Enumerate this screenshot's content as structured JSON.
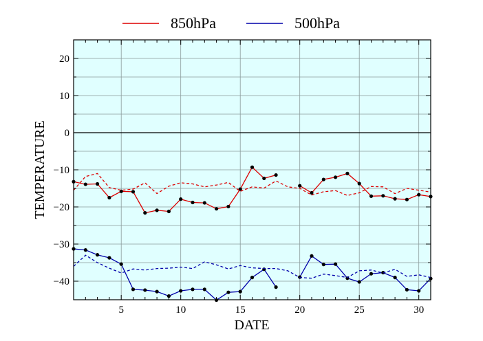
{
  "chart_data": {
    "type": "line",
    "title": "",
    "xlabel": "DATE",
    "ylabel": "TEMPERATURE",
    "xlim": [
      1,
      31
    ],
    "ylim": [
      -45,
      25
    ],
    "x_ticks": [
      5,
      10,
      15,
      20,
      25,
      30
    ],
    "y_ticks": [
      -40,
      -30,
      -20,
      -10,
      0,
      10,
      20
    ],
    "x_minor_step": 1,
    "y_minor_step": 5,
    "grid": true,
    "background_color": "#e0ffff",
    "zero_line": true,
    "legend": {
      "placement": "top",
      "entries": [
        {
          "label": "850hPa",
          "color": "#dd0000"
        },
        {
          "label": "500hPa",
          "color": "#0000aa"
        }
      ]
    },
    "x": [
      1,
      2,
      3,
      4,
      5,
      6,
      7,
      8,
      9,
      10,
      11,
      12,
      13,
      14,
      15,
      16,
      17,
      18,
      19,
      20,
      21,
      22,
      23,
      24,
      25,
      26,
      27,
      28,
      29,
      30,
      31
    ],
    "series": [
      {
        "color": "#dd0000",
        "style": "solid",
        "markers": true,
        "values": [
          -13.2,
          -13.9,
          -13.8,
          -17.5,
          -15.8,
          -15.9,
          -21.6,
          -20.9,
          -21.2,
          -17.9,
          -18.8,
          -18.9,
          -20.5,
          -19.9,
          -15.2,
          -9.3,
          -12.3,
          -11.4,
          null,
          -14.3,
          -16.2,
          -12.6,
          -12.0,
          -11.0,
          -13.7,
          -17.1,
          -17.0,
          -17.8,
          -18.0,
          -16.7,
          -17.2
        ]
      },
      {
        "color": "#dd0000",
        "style": "dashed",
        "markers": false,
        "values": [
          -15.5,
          -11.8,
          -11.0,
          -14.8,
          -15.5,
          -15.2,
          -13.5,
          -16.4,
          -14.4,
          -13.5,
          -13.8,
          -14.6,
          -14.1,
          -13.4,
          -15.8,
          -14.6,
          -14.9,
          -13.0,
          -14.6,
          -15.0,
          -16.8,
          -15.9,
          -15.6,
          -16.9,
          -16.2,
          -14.5,
          -14.6,
          -16.4,
          -15.0,
          -15.5,
          -16.0
        ]
      },
      {
        "color": "#0000aa",
        "style": "solid",
        "markers": true,
        "values": [
          -31.3,
          -31.6,
          -32.9,
          -33.7,
          -35.4,
          -42.2,
          -42.4,
          -42.8,
          -44.0,
          -42.6,
          -42.2,
          -42.2,
          -45.1,
          -43.0,
          -42.8,
          -39.0,
          -36.8,
          -41.6,
          null,
          -38.9,
          -33.2,
          -35.5,
          -35.4,
          -39.2,
          -40.2,
          -38.0,
          -37.7,
          -39.0,
          -42.3,
          -42.6,
          -39.3
        ]
      },
      {
        "color": "#0000aa",
        "style": "dashed",
        "markers": false,
        "values": [
          -36.0,
          -33.0,
          -35.0,
          -36.5,
          -37.8,
          -36.7,
          -37.0,
          -36.6,
          -36.5,
          -36.2,
          -36.6,
          -34.8,
          -35.6,
          -36.7,
          -35.8,
          -36.4,
          -36.6,
          -36.6,
          -37.2,
          -39.0,
          -39.2,
          -38.1,
          -38.5,
          -39.0,
          -37.2,
          -37.0,
          -37.8,
          -36.8,
          -38.7,
          -38.3,
          -39.0
        ]
      }
    ]
  }
}
